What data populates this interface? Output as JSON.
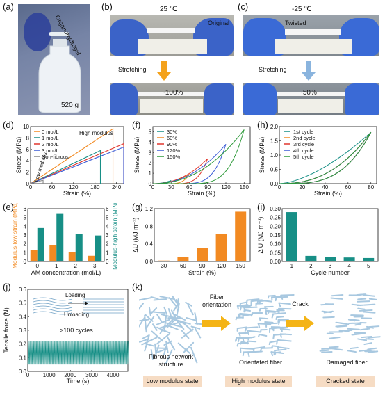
{
  "panels": {
    "a": {
      "letter": "(a)",
      "label": "Organohydrogel",
      "mass": "520 g"
    },
    "b": {
      "letter": "(b)",
      "temp": "25 ℃",
      "state1": "Original",
      "action": "Stretching",
      "strain": "~100%"
    },
    "c": {
      "letter": "(c)",
      "temp": "-25 ℃",
      "state1": "Twisted",
      "action": "Stretching",
      "strain": "~50%"
    },
    "d": {
      "letter": "(d)",
      "annot_high": "High modulus",
      "annot_low": "Low modulus"
    },
    "e": {
      "letter": "(e)"
    },
    "f": {
      "letter": "(f)"
    },
    "g": {
      "letter": "(g)"
    },
    "h": {
      "letter": "(h)"
    },
    "i": {
      "letter": "(i)"
    },
    "j": {
      "letter": "(j)",
      "loading": "Loading",
      "unloading": "Unloading",
      "cycles": ">100 cycles"
    },
    "k": {
      "letter": "(k)",
      "arrow1": "Fiber orientation",
      "arrow2": "Crack",
      "struct1": "Fibrous network structure",
      "struct2": "Orientated fiber",
      "struct3": "Damaged fiber",
      "state1": "Low modulus state",
      "state2": "High modulus state",
      "state3": "Cracked state"
    }
  },
  "colors": {
    "orange": "#f28a22",
    "teal": "#178f86",
    "blue": "#3a5bd6",
    "red": "#e0362c",
    "green": "#2e9a3a",
    "gray": "#888888",
    "fiber": "#a8c8e0"
  },
  "chart_data": [
    {
      "id": "d",
      "type": "line",
      "xlabel": "Strain (%)",
      "ylabel": "Stress (MPa)",
      "xlim": [
        0,
        260
      ],
      "ylim": [
        0,
        10
      ],
      "xticks": [
        0,
        60,
        120,
        180,
        240
      ],
      "yticks": [
        0,
        2,
        4,
        6,
        8,
        10
      ],
      "series": [
        {
          "name": "0 mol/L",
          "color": "#f28a22",
          "x": [
            0,
            230,
            230
          ],
          "y": [
            0,
            9.6,
            0
          ]
        },
        {
          "name": "1 mol/L",
          "color": "#178f86",
          "x": [
            0,
            195,
            195
          ],
          "y": [
            0,
            5.8,
            0
          ]
        },
        {
          "name": "2 mol/L",
          "color": "#e0362c",
          "x": [
            0,
            265,
            265
          ],
          "y": [
            0,
            7.0,
            0
          ]
        },
        {
          "name": "3 mol/L",
          "color": "#3a5bd6",
          "x": [
            0,
            262,
            262
          ],
          "y": [
            0,
            6.4,
            0
          ]
        },
        {
          "name": "Non-fibrous",
          "color": "#888888",
          "x": [
            0,
            35,
            35
          ],
          "y": [
            0,
            0.6,
            0
          ]
        }
      ]
    },
    {
      "id": "e",
      "type": "bar",
      "xlabel": "AM concentration (mol/L)",
      "ylabel_left": "Modulus-low strain (MPa)",
      "ylabel_right": "Modulus-high strain (MPa)",
      "categories": [
        "0",
        "1",
        "2",
        "3"
      ],
      "ylim_left": [
        0,
        6
      ],
      "ylim_right": [
        0,
        6
      ],
      "yticks": [
        0,
        1,
        2,
        3,
        4,
        5,
        6
      ],
      "series": [
        {
          "name": "Modulus-low strain",
          "color": "#f28a22",
          "values": [
            1.3,
            1.85,
            1.05,
            0.65
          ]
        },
        {
          "name": "Modulus-high strain",
          "color": "#178f86",
          "values": [
            3.8,
            5.4,
            3.1,
            2.95
          ]
        }
      ]
    },
    {
      "id": "f",
      "type": "line",
      "xlabel": "Strain (%)",
      "ylabel": "Stress (MPa)",
      "xlim": [
        0,
        160
      ],
      "ylim": [
        0,
        5.5
      ],
      "xticks": [
        0,
        30,
        60,
        90,
        120,
        150
      ],
      "yticks": [
        0,
        1,
        2,
        3,
        4,
        5
      ],
      "series": [
        {
          "name": "30%",
          "color": "#178f86",
          "max_x": 30,
          "max_y": 0.3
        },
        {
          "name": "60%",
          "color": "#f28a22",
          "max_x": 60,
          "max_y": 0.9
        },
        {
          "name": "90%",
          "color": "#e0362c",
          "max_x": 90,
          "max_y": 2.4
        },
        {
          "name": "120%",
          "color": "#3a5bd6",
          "max_x": 120,
          "max_y": 3.8
        },
        {
          "name": "150%",
          "color": "#2e9a3a",
          "max_x": 150,
          "max_y": 5.2
        }
      ]
    },
    {
      "id": "g",
      "type": "bar",
      "xlabel": "Strain (%)",
      "ylabel": "ΔU (MJ m⁻³)",
      "categories": [
        "30",
        "60",
        "90",
        "120",
        "150"
      ],
      "ylim": [
        0,
        1.2
      ],
      "yticks": [
        0.0,
        0.4,
        0.8,
        1.2
      ],
      "values": [
        0.02,
        0.11,
        0.3,
        0.63,
        1.13
      ],
      "color": "#f28a22"
    },
    {
      "id": "h",
      "type": "line",
      "xlabel": "Strain (%)",
      "ylabel": "Stress (MPa)",
      "xlim": [
        0,
        85
      ],
      "ylim": [
        0,
        2
      ],
      "xticks": [
        0,
        20,
        40,
        60,
        80
      ],
      "yticks": [
        0.0,
        0.5,
        1.0,
        1.5,
        2.0
      ],
      "series": [
        {
          "name": "1st cycle",
          "color": "#178f86"
        },
        {
          "name": "2nd cycle",
          "color": "#f28a22"
        },
        {
          "name": "3rd cycle",
          "color": "#e0362c"
        },
        {
          "name": "4th cycle",
          "color": "#3a5bd6"
        },
        {
          "name": "5th cycle",
          "color": "#2e9a3a"
        }
      ],
      "max_x": 80,
      "max_y": 1.8
    },
    {
      "id": "i",
      "type": "bar",
      "xlabel": "Cycle number",
      "ylabel": "Δ U (MJ m⁻³)",
      "categories": [
        "1",
        "2",
        "3",
        "4",
        "5"
      ],
      "ylim": [
        0,
        0.3
      ],
      "yticks": [
        0.0,
        0.05,
        0.1,
        0.15,
        0.2,
        0.25,
        0.3
      ],
      "values": [
        0.28,
        0.032,
        0.025,
        0.023,
        0.02
      ],
      "color": "#178f86"
    },
    {
      "id": "j",
      "type": "line",
      "xlabel": "Time (s)",
      "ylabel": "Tensile force (N)",
      "xlim": [
        0,
        4700
      ],
      "ylim": [
        0,
        0.6
      ],
      "xticks": [
        0,
        1000,
        2000,
        3000,
        4000
      ],
      "yticks": [
        0.0,
        0.1,
        0.2,
        0.3,
        0.4,
        0.5,
        0.6
      ],
      "peak": 0.22,
      "trough": 0.05,
      "cycles": 110
    }
  ]
}
